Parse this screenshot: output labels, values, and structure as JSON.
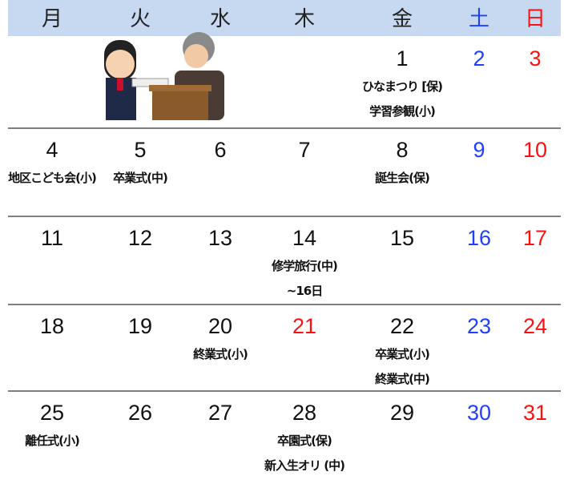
{
  "header": {
    "days": [
      {
        "label": "月"
      },
      {
        "label": "火"
      },
      {
        "label": "水"
      },
      {
        "label": "木"
      },
      {
        "label": "金"
      },
      {
        "label": "土",
        "color": "#1f3fff"
      },
      {
        "label": "日",
        "color": "#ff1010"
      }
    ]
  },
  "weeks": [
    {
      "start": 4,
      "cells": [
        {
          "date": 1,
          "events": [
            "ひなまつり [保)",
            "学習参観(小)"
          ]
        },
        {
          "date": 2,
          "color": "#1f3fff"
        },
        {
          "date": 3,
          "color": "#ff1010"
        }
      ]
    },
    {
      "start": 0,
      "cells": [
        {
          "date": 4,
          "events": [
            "地区こども会(小)"
          ]
        },
        {
          "date": 5,
          "events": [
            "卒業式(中)"
          ]
        },
        {
          "date": 6
        },
        {
          "date": 7
        },
        {
          "date": 8,
          "events": [
            "誕生会(保)"
          ]
        },
        {
          "date": 9,
          "color": "#1f3fff"
        },
        {
          "date": 10,
          "color": "#ff1010"
        }
      ]
    },
    {
      "start": 0,
      "cells": [
        {
          "date": 11
        },
        {
          "date": 12
        },
        {
          "date": 13
        },
        {
          "date": 14,
          "events": [
            "修学旅行(中)",
            "~16日"
          ]
        },
        {
          "date": 15
        },
        {
          "date": 16,
          "color": "#1f3fff"
        },
        {
          "date": 17,
          "color": "#ff1010"
        }
      ]
    },
    {
      "start": 0,
      "cells": [
        {
          "date": 18
        },
        {
          "date": 19
        },
        {
          "date": 20,
          "events": [
            "終業式(小)"
          ]
        },
        {
          "date": 21,
          "color": "#ff1010"
        },
        {
          "date": 22,
          "events": [
            "卒業式(小)",
            "終業式(中)"
          ]
        },
        {
          "date": 23,
          "color": "#1f3fff"
        },
        {
          "date": 24,
          "color": "#ff1010"
        }
      ]
    },
    {
      "start": 0,
      "cells": [
        {
          "date": 25,
          "events": [
            "離任式(小)"
          ]
        },
        {
          "date": 26
        },
        {
          "date": 27
        },
        {
          "date": 28,
          "events": [
            "卒園式(保)",
            "新入生オリ (中)"
          ]
        },
        {
          "date": 29
        },
        {
          "date": 30,
          "color": "#1f3fff"
        },
        {
          "date": 31,
          "color": "#ff1010"
        }
      ]
    }
  ]
}
